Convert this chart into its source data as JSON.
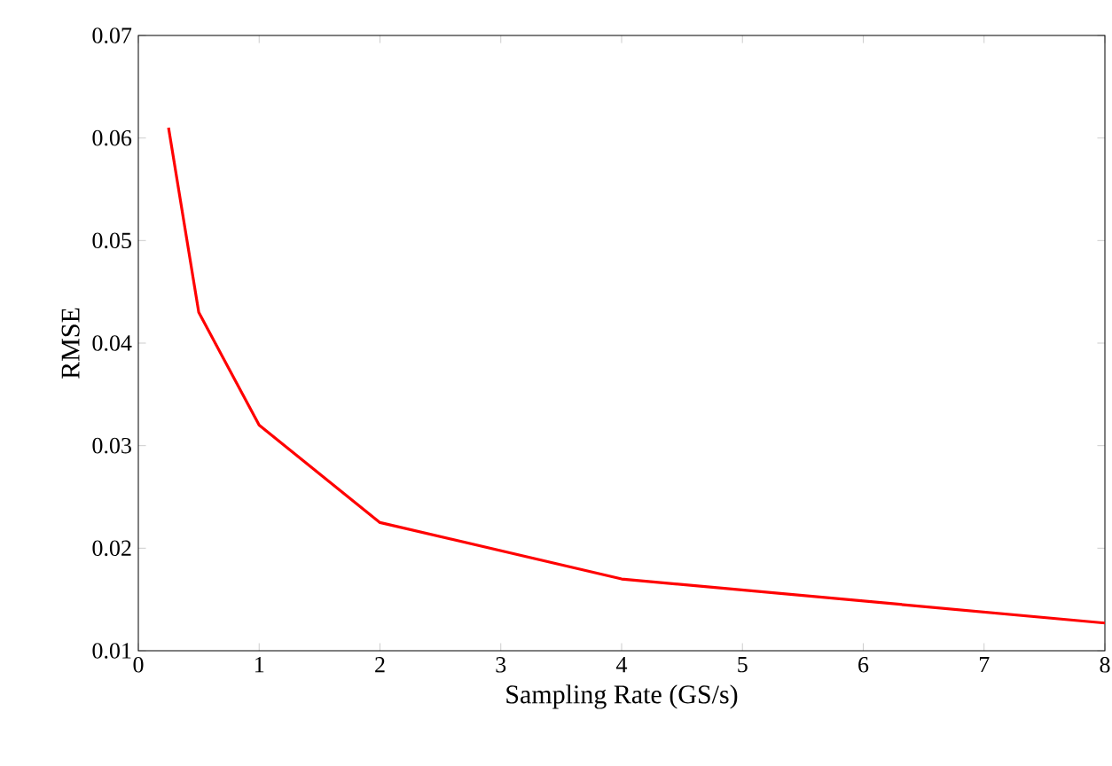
{
  "chart_data": {
    "type": "line",
    "xlabel": "Sampling Rate (GS/s)",
    "ylabel": "RMSE",
    "x": [
      0.25,
      0.5,
      1,
      2,
      4,
      8
    ],
    "series": [
      {
        "color": "#ff0000",
        "values": [
          0.061,
          0.043,
          0.032,
          0.0225,
          0.017,
          0.0127
        ]
      }
    ],
    "xlim": [
      0,
      8
    ],
    "xticks": [
      0,
      1,
      2,
      3,
      4,
      5,
      6,
      7,
      8
    ],
    "ylim": [
      0.01,
      0.07
    ],
    "yticks": [
      0.01,
      0.02,
      0.03,
      0.04,
      0.05,
      0.06,
      0.07
    ],
    "marker": "none",
    "line_style": "solid"
  }
}
